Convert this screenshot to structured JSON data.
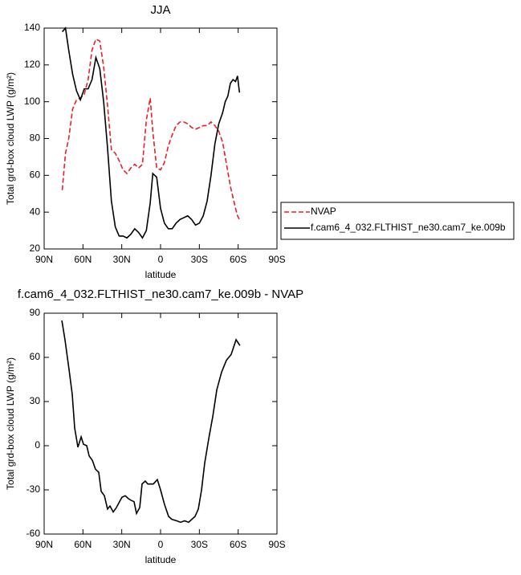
{
  "chart_data": [
    {
      "type": "line",
      "title": "JJA",
      "xlabel": "latitude",
      "ylabel": "Total grd-box cloud LWP (g/m²)",
      "xlim": [
        90,
        -90
      ],
      "xticks": [
        {
          "value": 90,
          "label": "90N"
        },
        {
          "value": 60,
          "label": "60N"
        },
        {
          "value": 30,
          "label": "30N"
        },
        0,
        {
          "value": -30,
          "label": "30S"
        },
        {
          "value": -60,
          "label": "60S"
        },
        {
          "value": -90,
          "label": "90S"
        }
      ],
      "ylim": [
        20,
        140
      ],
      "yticks": [
        20,
        40,
        60,
        80,
        100,
        120,
        140
      ],
      "legend": "right",
      "x": [
        76,
        73.5,
        71,
        68,
        65,
        62,
        59,
        56,
        53,
        50,
        47,
        44,
        41,
        38,
        35,
        32,
        29,
        26,
        23,
        20,
        17,
        14,
        11,
        8,
        6,
        3,
        0,
        -3,
        -6,
        -9,
        -12,
        -15,
        -18,
        -21,
        -24,
        -27,
        -30,
        -33,
        -36,
        -39,
        -42,
        -45,
        -48,
        -50,
        -52,
        -54,
        -56,
        -58,
        -59.5,
        -61
      ],
      "series": [
        {
          "name": "NVAP",
          "color": "#e8202a",
          "dash": true,
          "values": [
            52,
            72,
            80,
            96,
            101,
            102,
            104,
            112,
            128,
            134,
            133,
            119,
            98,
            74,
            72,
            68,
            63,
            61,
            64,
            66,
            64,
            66,
            90,
            102,
            84,
            64,
            63,
            67,
            76,
            82,
            87,
            89,
            89,
            88,
            86,
            85,
            86,
            87,
            87,
            89,
            87,
            84,
            78,
            70,
            62,
            54,
            48,
            42,
            38,
            36
          ]
        },
        {
          "name": "f.cam6_4_032.FLTHIST_ne30.cam7_ke.009b",
          "color": "#000000",
          "dash": false,
          "values": [
            138,
            140,
            128,
            115,
            106,
            101,
            107,
            107,
            112,
            124,
            118,
            100,
            75,
            46,
            32,
            27,
            27,
            26,
            28,
            31,
            29,
            26,
            30,
            45,
            61,
            59,
            42,
            34,
            31,
            31,
            34,
            36,
            37,
            38,
            36,
            33,
            34,
            38,
            46,
            60,
            77,
            88,
            94,
            100,
            103,
            110,
            112,
            111,
            114,
            105
          ]
        }
      ]
    },
    {
      "type": "line",
      "title": "f.cam6_4_032.FLTHIST_ne30.cam7_ke.009b - NVAP",
      "xlabel": "latitude",
      "ylabel": "Total grd-box cloud LWP (g/m²)",
      "xlim": [
        90,
        -90
      ],
      "xticks": [
        {
          "value": 90,
          "label": "90N"
        },
        {
          "value": 60,
          "label": "60N"
        },
        {
          "value": 30,
          "label": "30N"
        },
        0,
        {
          "value": -30,
          "label": "30S"
        },
        {
          "value": -60,
          "label": "60S"
        },
        {
          "value": -90,
          "label": "90S"
        }
      ],
      "ylim": [
        -60,
        90
      ],
      "yticks": [
        -60,
        -30,
        0,
        30,
        60,
        90
      ],
      "x": [
        76.3,
        73.9,
        70.8,
        68.3,
        66.4,
        63.9,
        61.4,
        59.6,
        57.1,
        55.2,
        52.7,
        50.3,
        47.8,
        45.9,
        43.4,
        41.0,
        39.1,
        36.6,
        34.1,
        31.7,
        29.8,
        27.3,
        24.8,
        23.0,
        20.5,
        18.6,
        16.1,
        14.3,
        11.8,
        9.9,
        7.4,
        5.6,
        2.5,
        0,
        -3.1,
        -6.2,
        -8.7,
        -12.4,
        -15.5,
        -18.6,
        -21.7,
        -26.7,
        -29.2,
        -31.7,
        -34.1,
        -37.3,
        -40.4,
        -43.5,
        -47.2,
        -50.9,
        -54.6,
        -58.4,
        -61.4
      ],
      "series": [
        {
          "color": "#000000",
          "dash": false,
          "values": [
            85,
            72,
            52,
            35,
            12,
            -1,
            6,
            1,
            0,
            -7,
            -10,
            -16,
            -18,
            -31,
            -34,
            -43,
            -41,
            -45,
            -42,
            -38,
            -35,
            -34,
            -36,
            -37,
            -38,
            -46,
            -42,
            -26,
            -24,
            -26,
            -26,
            -26,
            -23,
            -30,
            -40,
            -48,
            -50,
            -51,
            -52,
            -51,
            -52,
            -48,
            -43,
            -30,
            -12,
            5,
            20,
            38,
            50,
            58,
            62,
            72,
            68
          ]
        }
      ]
    }
  ]
}
